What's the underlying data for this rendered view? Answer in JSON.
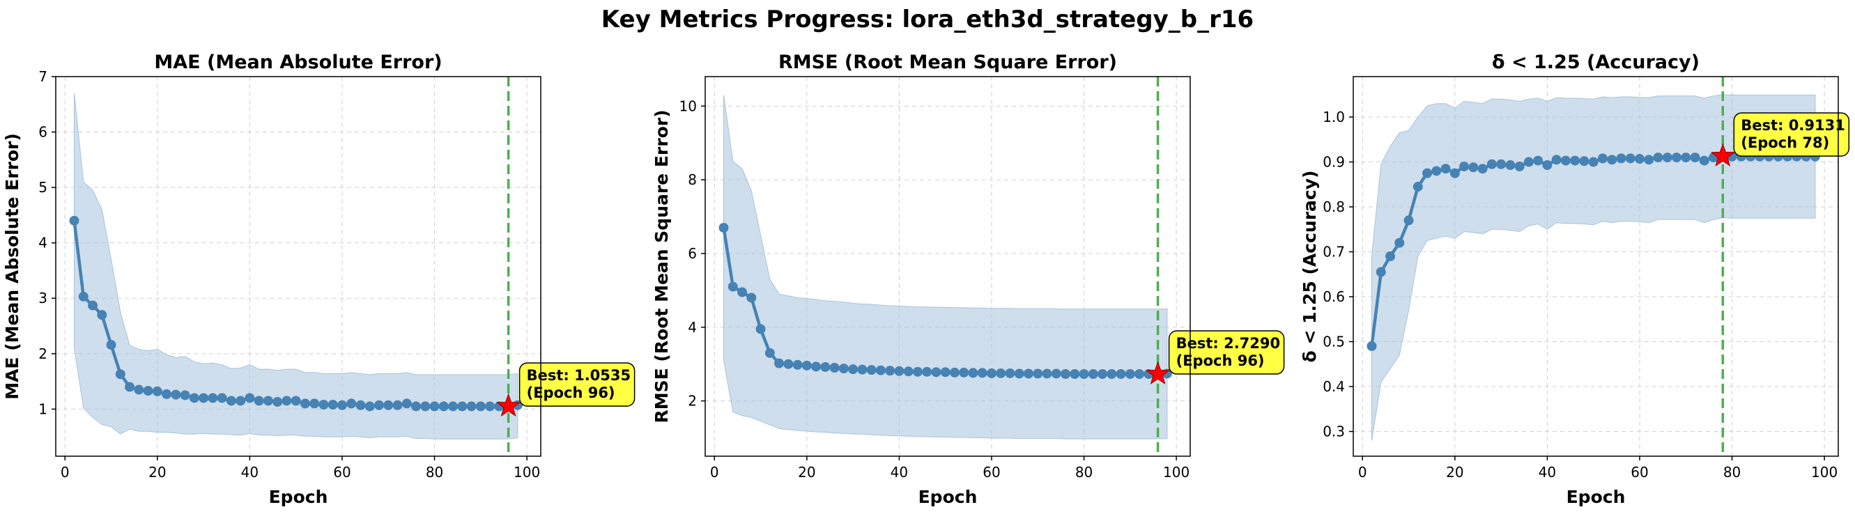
{
  "figure_title": "Key Metrics Progress: lora_eth3d_strategy_b_r16",
  "colors": {
    "line": "#4682b4",
    "band": "#a8c3dc",
    "best_line": "#4caf50",
    "star": "#ff0000",
    "annot_bg": "#ffff44"
  },
  "chart_data": [
    {
      "type": "line",
      "title": "MAE (Mean Absolute Error)",
      "xlabel": "Epoch",
      "ylabel": "MAE (Mean Absolute Error)",
      "xlim": [
        -2,
        103
      ],
      "ylim": [
        0.15,
        7.0
      ],
      "xticks": [
        0,
        20,
        40,
        60,
        80,
        100
      ],
      "yticks": [
        1,
        2,
        3,
        4,
        5,
        6,
        7
      ],
      "grid": true,
      "x": [
        2,
        4,
        6,
        8,
        10,
        12,
        14,
        16,
        18,
        20,
        22,
        24,
        26,
        28,
        30,
        32,
        34,
        36,
        38,
        40,
        42,
        44,
        46,
        48,
        50,
        52,
        54,
        56,
        58,
        60,
        62,
        64,
        66,
        68,
        70,
        72,
        74,
        76,
        78,
        80,
        82,
        84,
        86,
        88,
        90,
        92,
        94,
        96,
        98
      ],
      "y": [
        4.4,
        3.03,
        2.87,
        2.7,
        2.16,
        1.63,
        1.4,
        1.35,
        1.33,
        1.32,
        1.27,
        1.26,
        1.25,
        1.2,
        1.2,
        1.2,
        1.2,
        1.15,
        1.15,
        1.2,
        1.15,
        1.15,
        1.13,
        1.15,
        1.15,
        1.1,
        1.1,
        1.08,
        1.08,
        1.07,
        1.1,
        1.07,
        1.05,
        1.07,
        1.07,
        1.07,
        1.1,
        1.05,
        1.05,
        1.05,
        1.05,
        1.05,
        1.05,
        1.05,
        1.05,
        1.05,
        1.05,
        1.05,
        1.07
      ],
      "band_upper": [
        6.7,
        5.1,
        4.95,
        4.6,
        3.7,
        2.75,
        2.15,
        2.08,
        2.05,
        2.08,
        1.98,
        1.93,
        1.95,
        1.85,
        1.82,
        1.83,
        1.8,
        1.73,
        1.74,
        1.8,
        1.72,
        1.72,
        1.7,
        1.72,
        1.72,
        1.66,
        1.66,
        1.64,
        1.64,
        1.64,
        1.66,
        1.64,
        1.62,
        1.64,
        1.64,
        1.64,
        1.66,
        1.62,
        1.62,
        1.62,
        1.62,
        1.62,
        1.62,
        1.62,
        1.62,
        1.62,
        1.62,
        1.62,
        1.64
      ],
      "band_lower": [
        2.1,
        1.02,
        0.85,
        0.72,
        0.68,
        0.55,
        0.64,
        0.6,
        0.6,
        0.58,
        0.58,
        0.57,
        0.55,
        0.55,
        0.56,
        0.55,
        0.55,
        0.54,
        0.53,
        0.56,
        0.53,
        0.53,
        0.52,
        0.53,
        0.53,
        0.51,
        0.51,
        0.5,
        0.5,
        0.5,
        0.51,
        0.5,
        0.48,
        0.5,
        0.5,
        0.5,
        0.51,
        0.47,
        0.47,
        0.46,
        0.46,
        0.46,
        0.46,
        0.46,
        0.46,
        0.46,
        0.46,
        0.46,
        0.48
      ],
      "best": {
        "x": 96,
        "y": 1.0535,
        "label_line1": "Best: 1.0535",
        "label_line2": "(Epoch 96)"
      }
    },
    {
      "type": "line",
      "title": "RMSE (Root Mean Square Error)",
      "xlabel": "Epoch",
      "ylabel": "RMSE (Root Mean Square Error)",
      "xlim": [
        -2,
        103
      ],
      "ylim": [
        0.5,
        10.8
      ],
      "xticks": [
        0,
        20,
        40,
        60,
        80,
        100
      ],
      "yticks": [
        2,
        4,
        6,
        8,
        10
      ],
      "grid": true,
      "x": [
        2,
        4,
        6,
        8,
        10,
        12,
        14,
        16,
        18,
        20,
        22,
        24,
        26,
        28,
        30,
        32,
        34,
        36,
        38,
        40,
        42,
        44,
        46,
        48,
        50,
        52,
        54,
        56,
        58,
        60,
        62,
        64,
        66,
        68,
        70,
        72,
        74,
        76,
        78,
        80,
        82,
        84,
        86,
        88,
        90,
        92,
        94,
        96,
        98
      ],
      "y": [
        6.7,
        5.1,
        4.95,
        4.8,
        3.95,
        3.3,
        3.02,
        3.0,
        2.98,
        2.96,
        2.93,
        2.92,
        2.9,
        2.88,
        2.86,
        2.85,
        2.84,
        2.83,
        2.82,
        2.81,
        2.8,
        2.79,
        2.79,
        2.78,
        2.78,
        2.77,
        2.77,
        2.76,
        2.76,
        2.75,
        2.75,
        2.75,
        2.74,
        2.74,
        2.74,
        2.74,
        2.74,
        2.73,
        2.73,
        2.73,
        2.73,
        2.73,
        2.73,
        2.73,
        2.73,
        2.73,
        2.73,
        2.73,
        2.74
      ],
      "band_upper": [
        10.3,
        8.5,
        8.3,
        7.7,
        6.5,
        5.3,
        4.9,
        4.85,
        4.8,
        4.78,
        4.75,
        4.72,
        4.7,
        4.68,
        4.65,
        4.63,
        4.62,
        4.6,
        4.58,
        4.58,
        4.56,
        4.55,
        4.55,
        4.54,
        4.54,
        4.53,
        4.53,
        4.52,
        4.52,
        4.51,
        4.51,
        4.51,
        4.5,
        4.5,
        4.5,
        4.5,
        4.5,
        4.49,
        4.49,
        4.49,
        4.49,
        4.49,
        4.49,
        4.49,
        4.49,
        4.49,
        4.49,
        4.49,
        4.5
      ],
      "band_lower": [
        3.1,
        1.7,
        1.6,
        1.55,
        1.45,
        1.35,
        1.25,
        1.22,
        1.2,
        1.18,
        1.16,
        1.15,
        1.13,
        1.12,
        1.1,
        1.1,
        1.08,
        1.07,
        1.06,
        1.05,
        1.04,
        1.03,
        1.03,
        1.02,
        1.02,
        1.01,
        1.01,
        1.0,
        1.0,
        0.99,
        0.99,
        0.99,
        0.98,
        0.98,
        0.98,
        0.98,
        0.98,
        0.97,
        0.97,
        0.97,
        0.97,
        0.97,
        0.97,
        0.97,
        0.97,
        0.97,
        0.97,
        0.97,
        0.98
      ],
      "best": {
        "x": 96,
        "y": 2.729,
        "label_line1": "Best: 2.7290",
        "label_line2": "(Epoch 96)"
      }
    },
    {
      "type": "line",
      "title": "δ < 1.25 (Accuracy)",
      "xlabel": "Epoch",
      "ylabel": "δ < 1.25 (Accuracy)",
      "xlim": [
        -2,
        103
      ],
      "ylim": [
        0.245,
        1.09
      ],
      "xticks": [
        0,
        20,
        40,
        60,
        80,
        100
      ],
      "yticks": [
        0.3,
        0.4,
        0.5,
        0.6,
        0.7,
        0.8,
        0.9,
        1.0
      ],
      "grid": true,
      "x": [
        2,
        4,
        6,
        8,
        10,
        12,
        14,
        16,
        18,
        20,
        22,
        24,
        26,
        28,
        30,
        32,
        34,
        36,
        38,
        40,
        42,
        44,
        46,
        48,
        50,
        52,
        54,
        56,
        58,
        60,
        62,
        64,
        66,
        68,
        70,
        72,
        74,
        76,
        78,
        80,
        82,
        84,
        86,
        88,
        90,
        92,
        94,
        96,
        98
      ],
      "y": [
        0.49,
        0.655,
        0.69,
        0.72,
        0.77,
        0.845,
        0.875,
        0.88,
        0.885,
        0.875,
        0.89,
        0.888,
        0.885,
        0.895,
        0.895,
        0.893,
        0.89,
        0.9,
        0.903,
        0.893,
        0.905,
        0.903,
        0.903,
        0.902,
        0.9,
        0.908,
        0.905,
        0.908,
        0.908,
        0.907,
        0.905,
        0.91,
        0.91,
        0.91,
        0.91,
        0.91,
        0.903,
        0.91,
        0.913,
        0.912,
        0.912,
        0.912,
        0.912,
        0.912,
        0.912,
        0.912,
        0.912,
        0.912,
        0.912
      ],
      "band_upper": [
        0.69,
        0.895,
        0.935,
        0.965,
        0.97,
        1.0,
        1.025,
        1.03,
        1.03,
        1.02,
        1.035,
        1.033,
        1.03,
        1.04,
        1.04,
        1.038,
        1.035,
        1.04,
        1.042,
        1.035,
        1.043,
        1.042,
        1.042,
        1.041,
        1.04,
        1.045,
        1.043,
        1.045,
        1.045,
        1.044,
        1.043,
        1.047,
        1.047,
        1.047,
        1.047,
        1.047,
        1.042,
        1.047,
        1.05,
        1.049,
        1.049,
        1.049,
        1.049,
        1.049,
        1.049,
        1.049,
        1.049,
        1.049,
        1.049
      ],
      "band_lower": [
        0.28,
        0.41,
        0.44,
        0.47,
        0.57,
        0.69,
        0.725,
        0.73,
        0.735,
        0.73,
        0.745,
        0.743,
        0.74,
        0.75,
        0.75,
        0.748,
        0.745,
        0.758,
        0.762,
        0.75,
        0.765,
        0.763,
        0.763,
        0.762,
        0.76,
        0.768,
        0.765,
        0.768,
        0.768,
        0.767,
        0.765,
        0.772,
        0.772,
        0.772,
        0.772,
        0.772,
        0.765,
        0.772,
        0.776,
        0.775,
        0.775,
        0.775,
        0.775,
        0.775,
        0.775,
        0.775,
        0.775,
        0.775,
        0.775
      ],
      "best": {
        "x": 78,
        "y": 0.9131,
        "label_line1": "Best: 0.9131",
        "label_line2": "(Epoch 78)"
      }
    }
  ]
}
